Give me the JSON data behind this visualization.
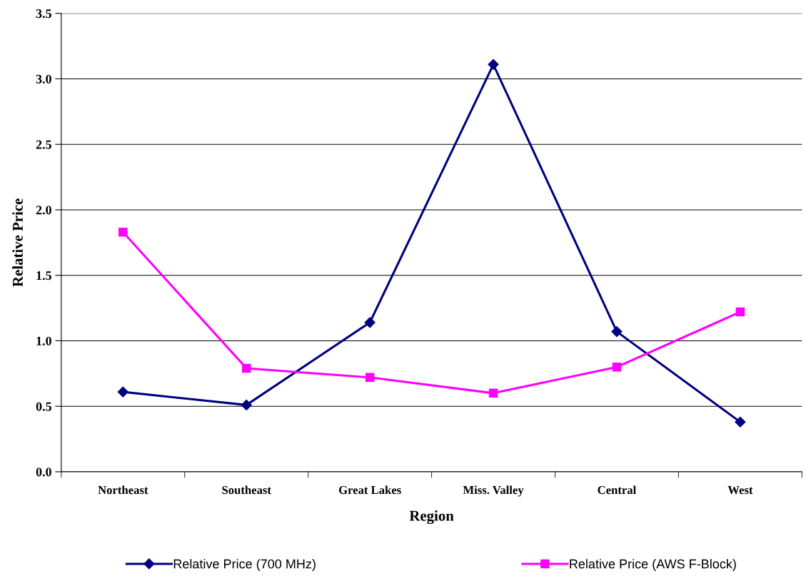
{
  "chart_data": {
    "type": "line",
    "xlabel": "Region",
    "ylabel": "Relative Price",
    "categories": [
      "Northeast",
      "Southeast",
      "Great Lakes",
      "Miss. Valley",
      "Central",
      "West"
    ],
    "series": [
      {
        "name": "Relative Price (700 MHz)",
        "color": "#000080",
        "marker": "diamond",
        "values": [
          0.61,
          0.51,
          1.14,
          3.11,
          1.07,
          0.38
        ]
      },
      {
        "name": "Relative Price (AWS F-Block)",
        "color": "#ff00ff",
        "marker": "square",
        "values": [
          1.83,
          0.79,
          0.72,
          0.6,
          0.8,
          1.22
        ]
      }
    ],
    "ylim": [
      0,
      3.5
    ],
    "yticks": [
      {
        "value": 0,
        "label": "0.0"
      },
      {
        "value": 0.5,
        "label": "0.5"
      },
      {
        "value": 1,
        "label": "1.0"
      },
      {
        "value": 1.5,
        "label": "1.5"
      },
      {
        "value": 2,
        "label": "2.0"
      },
      {
        "value": 2.5,
        "label": "2.5"
      },
      {
        "value": 3,
        "label": "3.0"
      },
      {
        "value": 3.5,
        "label": "3.5"
      }
    ],
    "grid": "y",
    "legend": "bottom",
    "line_style": "solid"
  }
}
